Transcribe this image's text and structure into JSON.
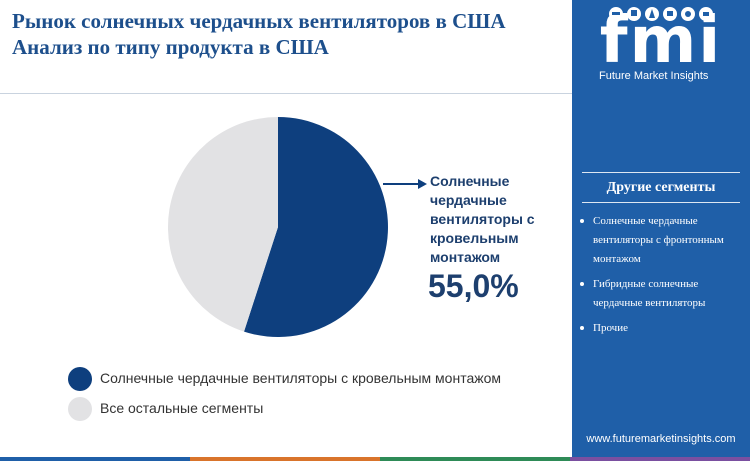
{
  "header": {
    "title_line1": "Рынок солнечных чердачных вентиляторов в США",
    "title_line2": "Анализ по типу продукта в США"
  },
  "brand": {
    "logo": "fmi",
    "tagline": "Future Market Insights",
    "url": "www.futuremarketinsights.com"
  },
  "sidebar": {
    "heading": "Другие сегменты",
    "items": [
      "Солнечные чердачные вентиляторы с фронтонным монтажом",
      "Гибридные солнечные чердачные вентиляторы",
      "Прочие"
    ]
  },
  "chart_data": {
    "type": "pie",
    "title": "",
    "slices": [
      {
        "label": "Солнечные чердачные вентиляторы с кровельным монтажом",
        "value": 55.0,
        "color": "#0e3f7e"
      },
      {
        "label": "Все остальные сегменты",
        "value": 45.0,
        "color": "#e2e2e4"
      }
    ],
    "annotation": {
      "label": "Солнечные чердачные вентиляторы с кровельным монтажом",
      "value_text": "55,0%"
    },
    "legend_position": "bottom-left"
  },
  "colors": {
    "title": "#1d4f8c",
    "sidebar_bg": "#1f5fa8",
    "accent_dark": "#0e3f7e",
    "slice_other": "#e2e2e4",
    "bottom_bar": [
      "#1f5fa8",
      "#d9742b",
      "#2e8b57",
      "#7a4fa0"
    ]
  }
}
